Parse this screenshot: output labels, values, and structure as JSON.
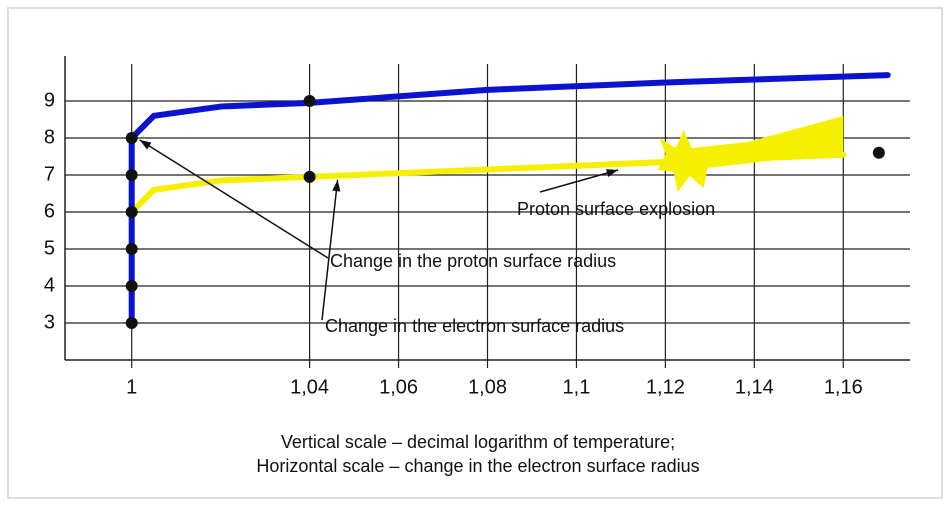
{
  "chart_data": {
    "type": "line",
    "xlim": [
      0.985,
      1.175
    ],
    "xticks": [
      {
        "value": 1,
        "label": "1"
      },
      {
        "value": 1.04,
        "label": "1,04"
      },
      {
        "value": 1.06,
        "label": "1,06"
      },
      {
        "value": 1.08,
        "label": "1,08"
      },
      {
        "value": 1.1,
        "label": "1,1"
      },
      {
        "value": 1.12,
        "label": "1,12"
      },
      {
        "value": 1.14,
        "label": "1,14"
      },
      {
        "value": 1.16,
        "label": "1,16"
      }
    ],
    "ylim": [
      2,
      10
    ],
    "yticks": [
      3,
      4,
      5,
      6,
      7,
      8,
      9
    ],
    "grid": true,
    "series": [
      {
        "color": "#0a14d0",
        "x": [
          1,
          1,
          1,
          1,
          1,
          1,
          1.005,
          1.02,
          1.04,
          1.08,
          1.12,
          1.17
        ],
        "values": [
          3,
          4,
          5,
          6,
          7,
          8,
          8.6,
          8.85,
          8.95,
          9.3,
          9.5,
          9.7
        ]
      },
      {
        "color": "#f5f000",
        "x": [
          1,
          1.005,
          1.02,
          1.04,
          1.08,
          1.12,
          1.16
        ],
        "values": [
          6,
          6.6,
          6.85,
          6.95,
          7.15,
          7.35,
          7.55
        ]
      }
    ],
    "points": {
      "color": "#111111",
      "x": [
        1,
        1,
        1,
        1,
        1,
        1,
        1.04,
        1.04,
        1.168
      ],
      "values": [
        3,
        4,
        5,
        6,
        7,
        8,
        9,
        6.95,
        7.6
      ]
    },
    "annotations": [
      "Proton surface explosion",
      "Change in the proton surface radius",
      "Change in the electron surface radius"
    ],
    "caption": [
      "Vertical scale – decimal logarithm of temperature;",
      "Horizontal scale – change in the electron surface radius"
    ]
  }
}
